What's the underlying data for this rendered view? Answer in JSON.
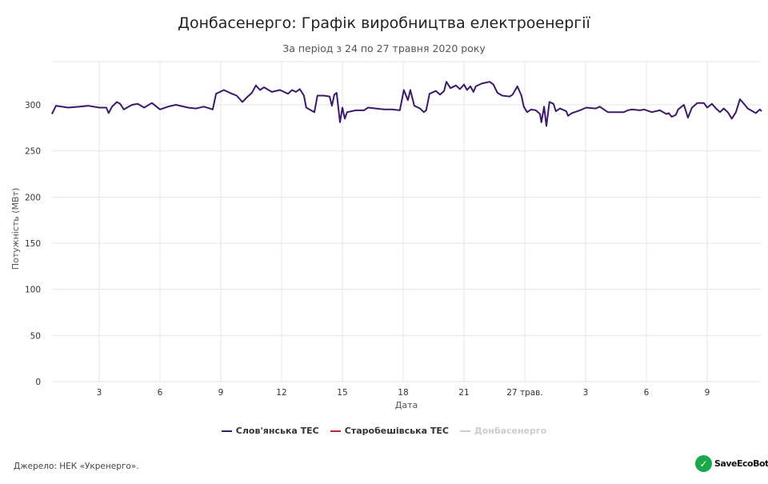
{
  "title": "Донбасенерго: Графік виробництва електроенергії",
  "subtitle": "За період з 24 по 27 травня 2020 року",
  "source": "Джерело: НЕК «Укренерго».",
  "logo_text": "SaveEcoBot",
  "chart_data": {
    "type": "line",
    "title": "Донбасенерго: Графік виробництва електроенергії",
    "subtitle": "За період з 24 по 27 травня 2020 року",
    "xlabel": "Дата",
    "ylabel": "Потужність (МВт)",
    "x_tick_labels": [
      "3",
      "6",
      "9",
      "12",
      "15",
      "18",
      "21",
      "27 трав.",
      "3",
      "6",
      "9"
    ],
    "x_tick_times": [
      "26.05 03:00",
      "26.05 06:00",
      "26.05 09:00",
      "26.05 12:00",
      "26.05 15:00",
      "26.05 18:00",
      "26.05 21:00",
      "27.05 00:00",
      "27.05 03:00",
      "27.05 06:00",
      "27.05 09:00"
    ],
    "y_ticks": [
      0,
      50,
      100,
      150,
      200,
      250,
      300
    ],
    "ylim": [
      0,
      350
    ],
    "grid": true,
    "legend_position": "bottom",
    "series": [
      {
        "name": "Слов'янська ТЕС",
        "color": "#3b1a6b",
        "visible": true,
        "x": [
          "26.05 00:40",
          "26.05 00:52",
          "26.05 01:28",
          "26.05 02:03",
          "26.05 02:27",
          "26.05 03:00",
          "26.05 03:21",
          "26.05 03:28",
          "26.05 03:38",
          "26.05 03:52",
          "26.05 04:02",
          "26.05 04:13",
          "26.05 04:37",
          "26.05 04:54",
          "26.05 05:13",
          "26.05 05:36",
          "26.05 06:00",
          "26.05 06:24",
          "26.05 06:47",
          "26.05 07:23",
          "26.05 07:46",
          "26.05 08:10",
          "26.05 08:27",
          "26.05 08:36",
          "26.05 08:46",
          "26.05 09:09",
          "26.05 09:33",
          "26.05 09:47",
          "26.05 10:04",
          "26.05 10:20",
          "26.05 10:32",
          "26.05 10:44",
          "26.05 10:56",
          "26.05 11:08",
          "26.05 11:31",
          "26.05 11:55",
          "26.05 12:19",
          "26.05 12:31",
          "26.05 12:42",
          "26.05 12:54",
          "26.05 13:06",
          "26.05 13:13",
          "26.05 13:37",
          "26.05 13:46",
          "26.05 14:05",
          "26.05 14:22",
          "26.05 14:29",
          "26.05 14:36",
          "26.05 14:43",
          "26.05 14:53",
          "26.05 15:00",
          "26.05 15:07",
          "26.05 15:14",
          "26.05 15:40",
          "26.05 16:04",
          "26.05 16:16",
          "26.05 16:39",
          "26.05 17:03",
          "26.05 17:27",
          "26.05 17:50",
          "26.05 18:02",
          "26.05 18:14",
          "26.05 18:21",
          "26.05 18:33",
          "26.05 18:50",
          "26.05 19:01",
          "26.05 19:08",
          "26.05 19:18",
          "26.05 19:37",
          "26.05 19:49",
          "26.05 20:01",
          "26.05 20:08",
          "26.05 20:20",
          "26.05 20:36",
          "26.05 20:48",
          "26.05 21:00",
          "26.05 21:09",
          "26.05 21:19",
          "26.05 21:28",
          "26.05 21:35",
          "26.05 21:52",
          "26.05 22:16",
          "26.05 22:27",
          "26.05 22:39",
          "26.05 22:53",
          "26.05 23:15",
          "26.05 23:24",
          "26.05 23:38",
          "26.05 23:50",
          "26.05 23:57",
          "27.05 00:07",
          "27.05 00:19",
          "27.05 00:33",
          "27.05 00:45",
          "27.05 00:49",
          "27.05 00:57",
          "27.05 01:04",
          "27.05 01:13",
          "27.05 01:25",
          "27.05 01:32",
          "27.05 01:44",
          "27.05 02:03",
          "27.05 02:08",
          "27.05 02:19",
          "27.05 02:43",
          "27.05 03:02",
          "27.05 03:30",
          "27.05 03:42",
          "27.05 03:54",
          "27.05 04:06",
          "27.05 04:53",
          "27.05 05:05",
          "27.05 05:17",
          "27.05 05:41",
          "27.05 05:53",
          "27.05 06:16",
          "27.05 06:40",
          "27.05 06:59",
          "27.05 07:06",
          "27.05 07:15",
          "27.05 07:27",
          "27.05 07:34",
          "27.05 07:51",
          "27.05 08:03",
          "27.05 08:15",
          "27.05 08:31",
          "27.05 08:50",
          "27.05 09:00",
          "27.05 09:14",
          "27.05 09:26",
          "27.05 09:38",
          "27.05 09:49",
          "27.05 10:01",
          "27.05 10:13",
          "27.05 10:25",
          "27.05 10:37",
          "27.05 10:49",
          "27.05 11:00",
          "27.05 11:24",
          "27.05 11:36",
          "27.05 11:41"
        ],
        "y": [
          290,
          299,
          297,
          298,
          299,
          297,
          297,
          291,
          298,
          303,
          301,
          295,
          300,
          301,
          297,
          302,
          295,
          298,
          300,
          297,
          296,
          298,
          296,
          295,
          312,
          316,
          312,
          310,
          303,
          309,
          313,
          321,
          316,
          319,
          314,
          316,
          312,
          316,
          314,
          317,
          310,
          297,
          292,
          310,
          310,
          309,
          299,
          311,
          313,
          281,
          297,
          285,
          292,
          294,
          294,
          297,
          296,
          295,
          295,
          294,
          316,
          305,
          316,
          299,
          296,
          292,
          294,
          312,
          315,
          311,
          315,
          325,
          318,
          321,
          317,
          322,
          316,
          320,
          314,
          320,
          323,
          325,
          322,
          313,
          310,
          309,
          311,
          320,
          310,
          298,
          292,
          295,
          294,
          290,
          281,
          298,
          277,
          303,
          301,
          293,
          296,
          293,
          288,
          291,
          294,
          297,
          296,
          298,
          295,
          292,
          292,
          294,
          295,
          294,
          295,
          292,
          294,
          290,
          291,
          287,
          289,
          295,
          300,
          286,
          297,
          302,
          302,
          297,
          301,
          296,
          292,
          296,
          292,
          285,
          292,
          306,
          301,
          296,
          291,
          295,
          293
        ]
      },
      {
        "name": "Старобешівська ТЕС",
        "color": "#c0272d",
        "visible": true,
        "x": [],
        "y": []
      },
      {
        "name": "Донбасенерго",
        "color": "#cccccc",
        "visible": false,
        "x": [],
        "y": []
      }
    ]
  }
}
